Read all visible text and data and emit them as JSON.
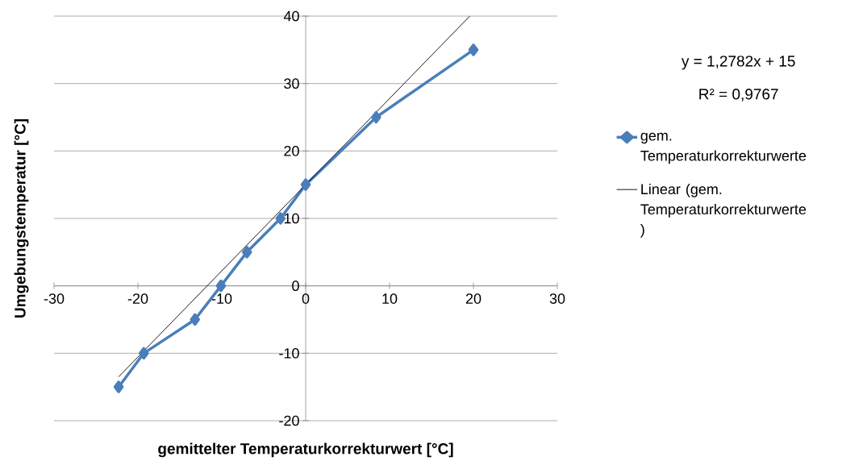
{
  "chart_data": {
    "type": "line",
    "xlabel": "gemittelter Temperaturkorrekturwert [°C]",
    "ylabel": "Umgebungstemperatur [°C]",
    "xlim": [
      -30,
      30
    ],
    "ylim": [
      -20,
      40
    ],
    "xticks": [
      -30,
      -20,
      -10,
      0,
      10,
      20,
      30
    ],
    "yticks": [
      -20,
      -10,
      0,
      10,
      20,
      30,
      40
    ],
    "grid": "y",
    "legend": "right",
    "annotations": [
      "y = 1,2782x + 15",
      "R² = 0,9767"
    ],
    "series": [
      {
        "name": "gem. Temperaturkorrekturwerte",
        "color": "#4a7ebb",
        "marker": "diamond",
        "x": [
          -22.3,
          -19.3,
          -13.2,
          -10.1,
          -7.0,
          -3.0,
          0,
          8.4,
          20.0
        ],
        "values": [
          -15,
          -10,
          -5,
          0,
          5,
          10,
          15,
          25,
          35
        ]
      },
      {
        "name": "Linear (gem. Temperaturkorrekturwerte )",
        "color": "#000000",
        "marker": "none",
        "x": [
          -22.3,
          19.56
        ],
        "values": [
          -13.5,
          40
        ]
      }
    ]
  }
}
